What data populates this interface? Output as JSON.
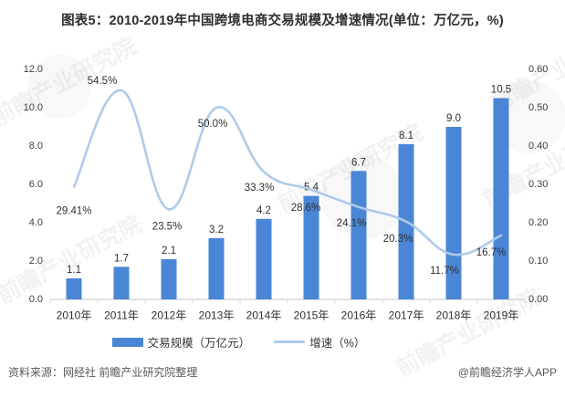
{
  "title": "图表5：2010-2019年中国跨境电商交易规模及增速情况(单位：万亿元，%)",
  "chart_data": {
    "type": "combo",
    "title": "图表5：2010-2019年中国跨境电商交易规模及增速情况(单位：万亿元，%)",
    "categories": [
      "2010年",
      "2011年",
      "2012年",
      "2013年",
      "2014年",
      "2015年",
      "2016年",
      "2017年",
      "2018年",
      "2019年"
    ],
    "series": [
      {
        "name": "交易规模（万亿元）",
        "type": "bar",
        "color": "#4A86D6",
        "values": [
          1.1,
          1.7,
          2.1,
          3.2,
          4.2,
          5.4,
          6.7,
          8.1,
          9.0,
          10.5
        ],
        "labels": [
          "1.1",
          "1.7",
          "2.1",
          "3.2",
          "4.2",
          "5.4",
          "6.7",
          "8.1",
          "9.0",
          "10.5"
        ]
      },
      {
        "name": "增速（%）",
        "type": "line",
        "color": "#AECBEB",
        "values": [
          0.2941,
          0.545,
          0.235,
          0.5,
          0.333,
          0.286,
          0.241,
          0.203,
          0.117,
          0.167
        ],
        "labels": [
          "29.41%",
          "54.5%",
          "23.5%",
          "50.0%",
          "33.3%",
          "28.6%",
          "24.1%",
          "20.3%",
          "11.7%",
          "16.7%"
        ]
      }
    ],
    "left_axis": {
      "min": 0,
      "max": 12,
      "step": 2,
      "tick_labels": [
        "0.0",
        "2.0",
        "4.0",
        "6.0",
        "8.0",
        "10.0",
        "12.0"
      ]
    },
    "right_axis": {
      "min": 0,
      "max": 0.6,
      "step": 0.1,
      "tick_labels": [
        "0.00",
        "0.10",
        "0.20",
        "0.30",
        "0.40",
        "0.50",
        "0.60"
      ]
    },
    "grid": false,
    "legend_position": "bottom",
    "legend": [
      {
        "label": "交易规模（万亿元）",
        "marker": "rect",
        "color": "#4A86D6"
      },
      {
        "label": "增速（%）",
        "marker": "line",
        "color": "#AECBEB"
      }
    ],
    "axis_color": "#D9D9D9",
    "label_color": "#303030"
  },
  "footer": {
    "source": "资料来源：网经社 前瞻产业研究院整理",
    "brand": "@前瞻经济学人APP"
  },
  "watermark": {
    "text": "前瞻产业研究院"
  }
}
